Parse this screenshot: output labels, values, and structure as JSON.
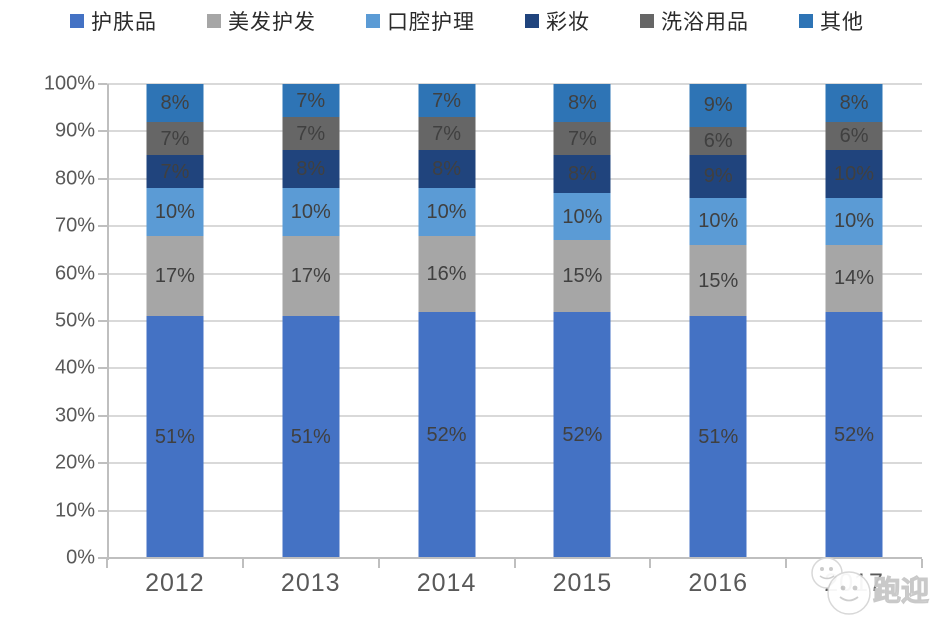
{
  "chart_data": {
    "type": "bar",
    "variant": "stacked-100-percent",
    "title": "",
    "categories": [
      "2012",
      "2013",
      "2014",
      "2015",
      "2016",
      "2017"
    ],
    "series": [
      {
        "name": "护肤品",
        "color": "#4472C4",
        "values": [
          51,
          51,
          52,
          52,
          51,
          52
        ]
      },
      {
        "name": "美发护发",
        "color": "#A6A6A6",
        "values": [
          17,
          17,
          16,
          15,
          15,
          14
        ]
      },
      {
        "name": "口腔护理",
        "color": "#5B9BD5",
        "values": [
          10,
          10,
          10,
          10,
          10,
          10
        ]
      },
      {
        "name": "彩妆",
        "color": "#20447D",
        "values": [
          7,
          8,
          8,
          8,
          9,
          10
        ]
      },
      {
        "name": "洗浴用品",
        "color": "#666666",
        "values": [
          7,
          7,
          7,
          7,
          6,
          6
        ]
      },
      {
        "name": "其他",
        "color": "#2E74B5",
        "values": [
          8,
          7,
          7,
          8,
          9,
          8
        ]
      }
    ],
    "value_label_suffix": "%",
    "y_ticks": [
      "0%",
      "10%",
      "20%",
      "30%",
      "40%",
      "50%",
      "60%",
      "70%",
      "80%",
      "90%",
      "100%"
    ],
    "ylim": [
      0,
      100
    ],
    "grid": true,
    "legend_position": "top",
    "gridline_color": "#D9D9D9",
    "axis_color": "#BFBFBF",
    "value_label_color": "#404040",
    "tick_label_color": "#595959"
  },
  "watermark": {
    "text": "跑迎",
    "icon": "chat-bubbles-icon"
  }
}
